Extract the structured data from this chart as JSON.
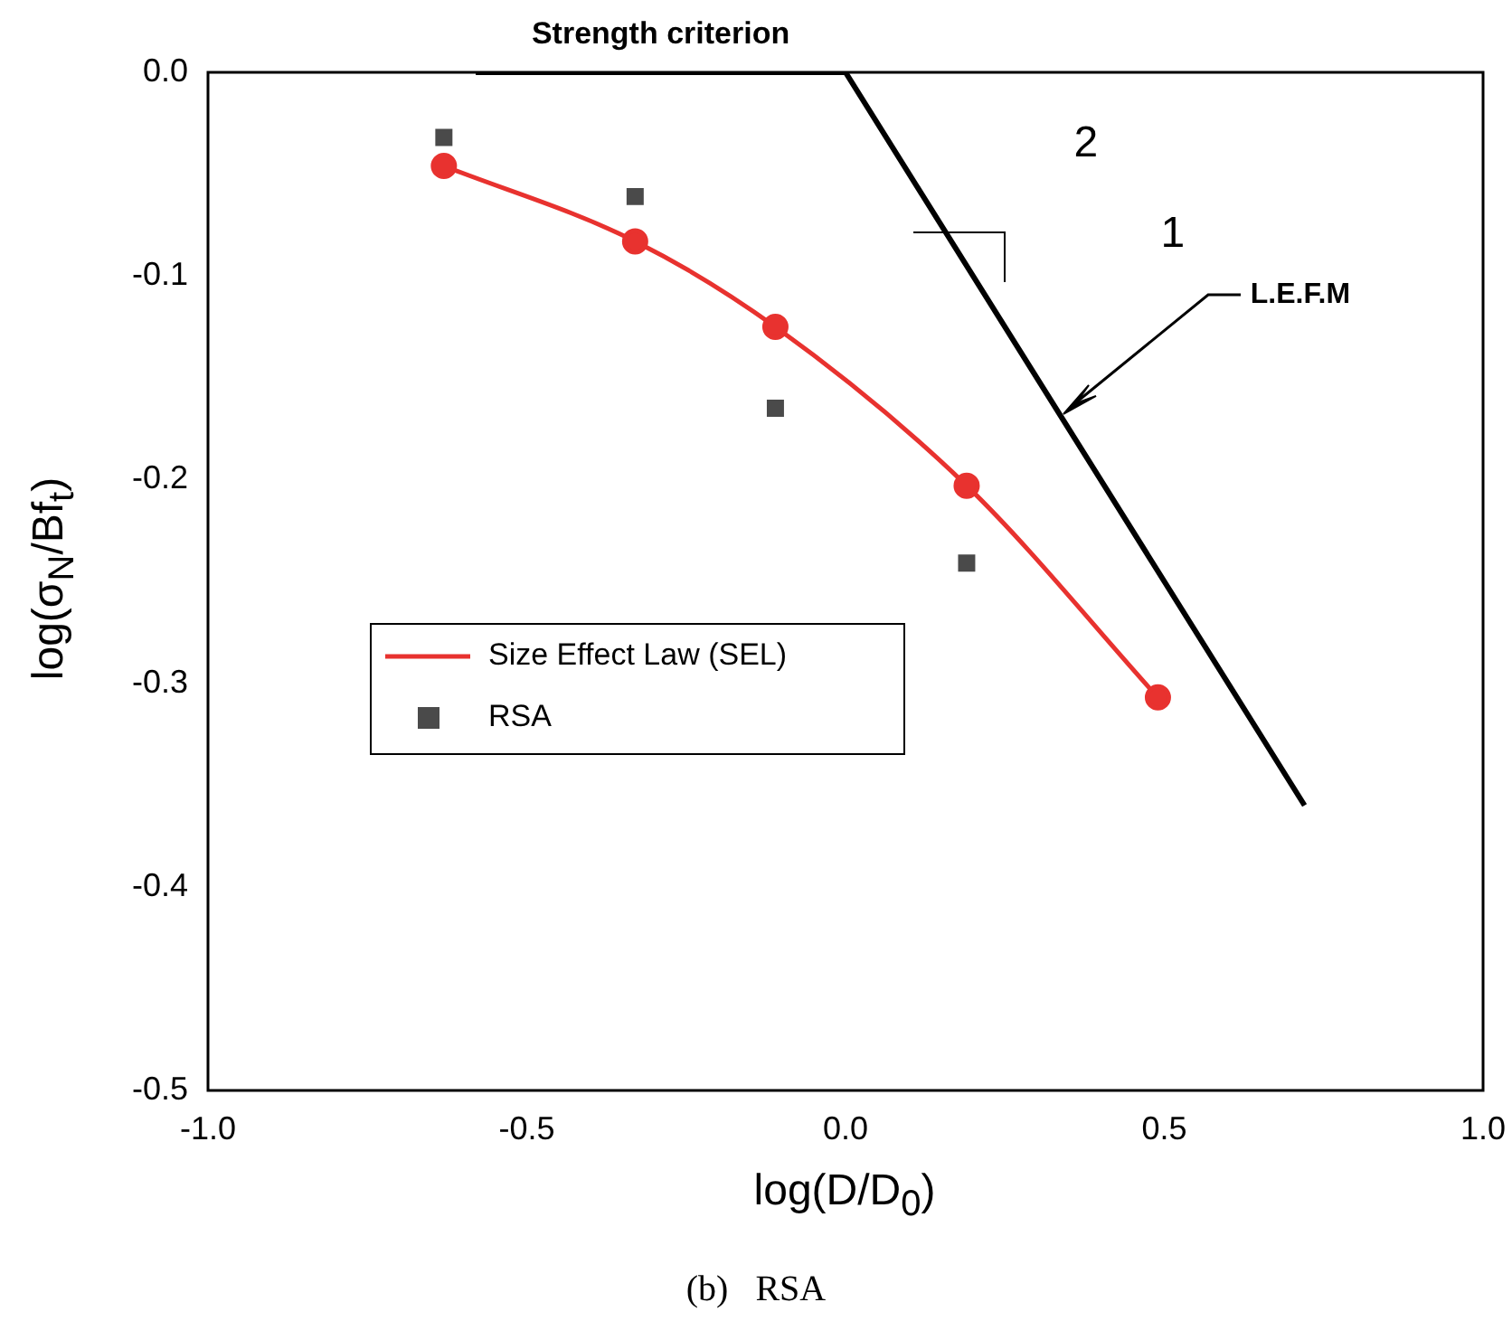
{
  "chart_data": {
    "type": "line",
    "xlabel": "log(D/D$_{0}$)",
    "ylabel": "log(σ$_{N}$/Bf$_{t}$)",
    "xlim": [
      -1.0,
      1.0
    ],
    "xticks": [
      {
        "value": -1.0,
        "label": "-1.0"
      },
      {
        "value": -0.5,
        "label": "-0.5"
      },
      {
        "value": 0,
        "label": "0.0"
      },
      {
        "value": 0.5,
        "label": "0.5"
      },
      {
        "value": 1.0,
        "label": "1.0"
      }
    ],
    "ylim": [
      -0.5,
      0.0
    ],
    "yticks": [
      {
        "value": -0.5,
        "label": "-0.5"
      },
      {
        "value": -0.4,
        "label": "-0.4"
      },
      {
        "value": -0.3,
        "label": "-0.3"
      },
      {
        "value": -0.2,
        "label": "-0.2"
      },
      {
        "value": -0.1,
        "label": "-0.1"
      },
      {
        "value": 0,
        "label": "0.0"
      }
    ],
    "grid": false,
    "legend": "center",
    "series": [
      {
        "name": "Size Effect Law (SEL)",
        "type": "line",
        "color": "#e8322f",
        "marker": "circle",
        "x": [
          -0.63,
          -0.33,
          -0.11,
          0.19,
          0.49
        ],
        "values": [
          -0.046,
          -0.083,
          -0.125,
          -0.203,
          -0.307
        ]
      },
      {
        "name": "RSA",
        "type": "scatter",
        "color": "#4a4a4a",
        "marker": "square",
        "x": [
          -0.63,
          -0.33,
          -0.11,
          0.19
        ],
        "values": [
          -0.032,
          -0.061,
          -0.165,
          -0.241
        ]
      },
      {
        "color": "#000000",
        "marker": "none",
        "x": [
          -0.58,
          0.0
        ],
        "values": [
          0.0,
          0.0
        ]
      },
      {
        "color": "#000000",
        "marker": "none",
        "x": [
          0.0,
          0.72
        ],
        "values": [
          0.0,
          -0.36
        ]
      }
    ],
    "annotations": [
      {
        "text": "Strength criterion",
        "x": -0.29,
        "y": 0.0
      },
      "2",
      "1",
      {
        "text": "L.E.F.M",
        "x": 0.343,
        "y": -0.167
      },
      "(b)   RSA"
    ]
  }
}
